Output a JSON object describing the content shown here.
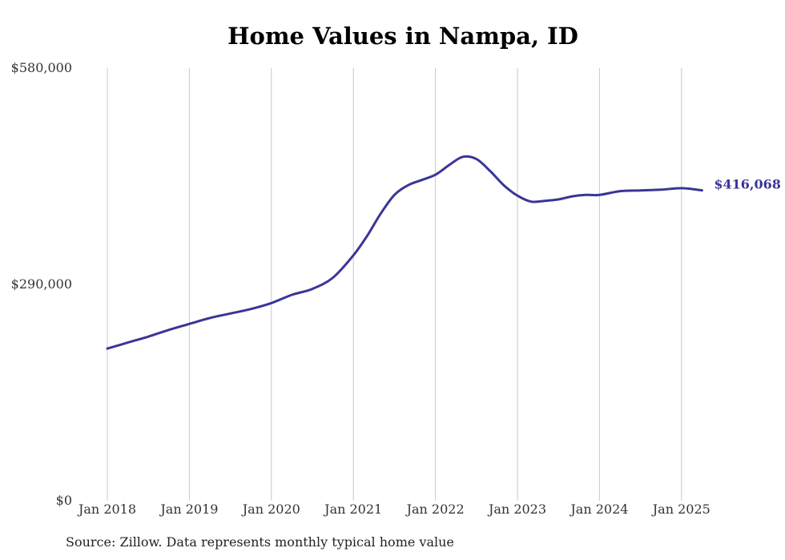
{
  "chart_data": {
    "type": "line",
    "title": "Home Values in Nampa, ID",
    "xlabel": "",
    "ylabel": "",
    "ylim": [
      0,
      580000
    ],
    "yticks": [
      "$580,000",
      "$290,000",
      "$0"
    ],
    "ytick_values": [
      580000,
      290000,
      0
    ],
    "xticks": [
      "Jan 2018",
      "Jan 2019",
      "Jan 2020",
      "Jan 2021",
      "Jan 2022",
      "Jan 2023",
      "Jan 2024",
      "Jan 2025"
    ],
    "grid": "vertical",
    "end_label": "$416,068",
    "line_color": "#3a3596",
    "series": [
      {
        "x": [
          "2018-01",
          "2018-04",
          "2018-07",
          "2018-10",
          "2019-01",
          "2019-04",
          "2019-07",
          "2019-10",
          "2020-01",
          "2020-04",
          "2020-07",
          "2020-10",
          "2021-01",
          "2021-03",
          "2021-05",
          "2021-07",
          "2021-09",
          "2021-11",
          "2022-01",
          "2022-03",
          "2022-05",
          "2022-07",
          "2022-09",
          "2022-11",
          "2023-01",
          "2023-03",
          "2023-05",
          "2023-07",
          "2023-09",
          "2023-11",
          "2024-01",
          "2024-04",
          "2024-07",
          "2024-10",
          "2025-01",
          "2025-04"
        ],
        "values": [
          204000,
          212000,
          220000,
          229000,
          237000,
          245000,
          251000,
          257000,
          265000,
          276000,
          284000,
          299000,
          329000,
          355000,
          385000,
          410000,
          423000,
          430000,
          437000,
          450000,
          461000,
          458000,
          442000,
          423000,
          409000,
          401000,
          402000,
          404000,
          408000,
          410000,
          410000,
          415000,
          416000,
          417000,
          419000,
          416068
        ]
      }
    ]
  },
  "source_note": "Source: Zillow. Data represents monthly typical home value"
}
